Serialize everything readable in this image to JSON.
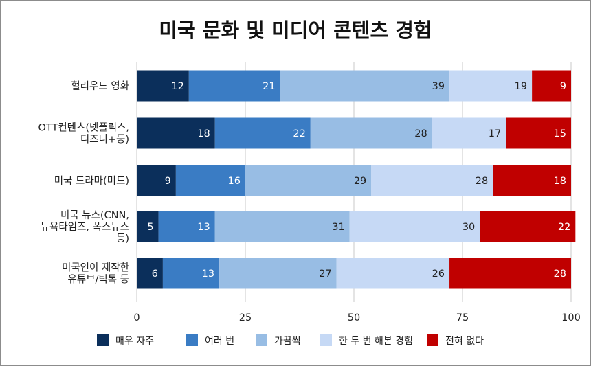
{
  "chart_data": {
    "type": "bar",
    "orientation": "horizontal",
    "stacked": true,
    "title": "미국 문화 및 미디어 콘텐츠 경험",
    "xlabel": "",
    "ylabel": "",
    "xlim": [
      0,
      100
    ],
    "xticks": [
      "0",
      "25",
      "50",
      "75",
      "100"
    ],
    "grid": true,
    "legend_position": "bottom",
    "categories": [
      [
        "헐리우드 영화"
      ],
      [
        "OTT컨텐츠(넷플릭스,",
        "디즈니+등)"
      ],
      [
        "미국 드라마(미드)"
      ],
      [
        "미국 뉴스(CNN,",
        "뉴욕타임즈, 폭스뉴스",
        "등)"
      ],
      [
        "미국인이 제작한",
        "유튜브/틱톡 등"
      ]
    ],
    "series": [
      {
        "name": "매우 자주",
        "color": "#0b2f5b",
        "label_color": "#ffffff",
        "values": [
          12,
          18,
          9,
          5,
          6
        ]
      },
      {
        "name": "여러 번",
        "color": "#3a7cc4",
        "label_color": "#ffffff",
        "values": [
          21,
          22,
          16,
          13,
          13
        ]
      },
      {
        "name": "가끔씩",
        "color": "#98bde4",
        "label_color": "#222222",
        "values": [
          39,
          28,
          29,
          31,
          27
        ]
      },
      {
        "name": "한 두 번 해본 경험",
        "color": "#c6d9f5",
        "label_color": "#222222",
        "values": [
          19,
          17,
          28,
          30,
          26
        ]
      },
      {
        "name": "전혀 없다",
        "color": "#c00000",
        "label_color": "#ffffff",
        "values": [
          9,
          15,
          18,
          22,
          28
        ]
      }
    ]
  }
}
